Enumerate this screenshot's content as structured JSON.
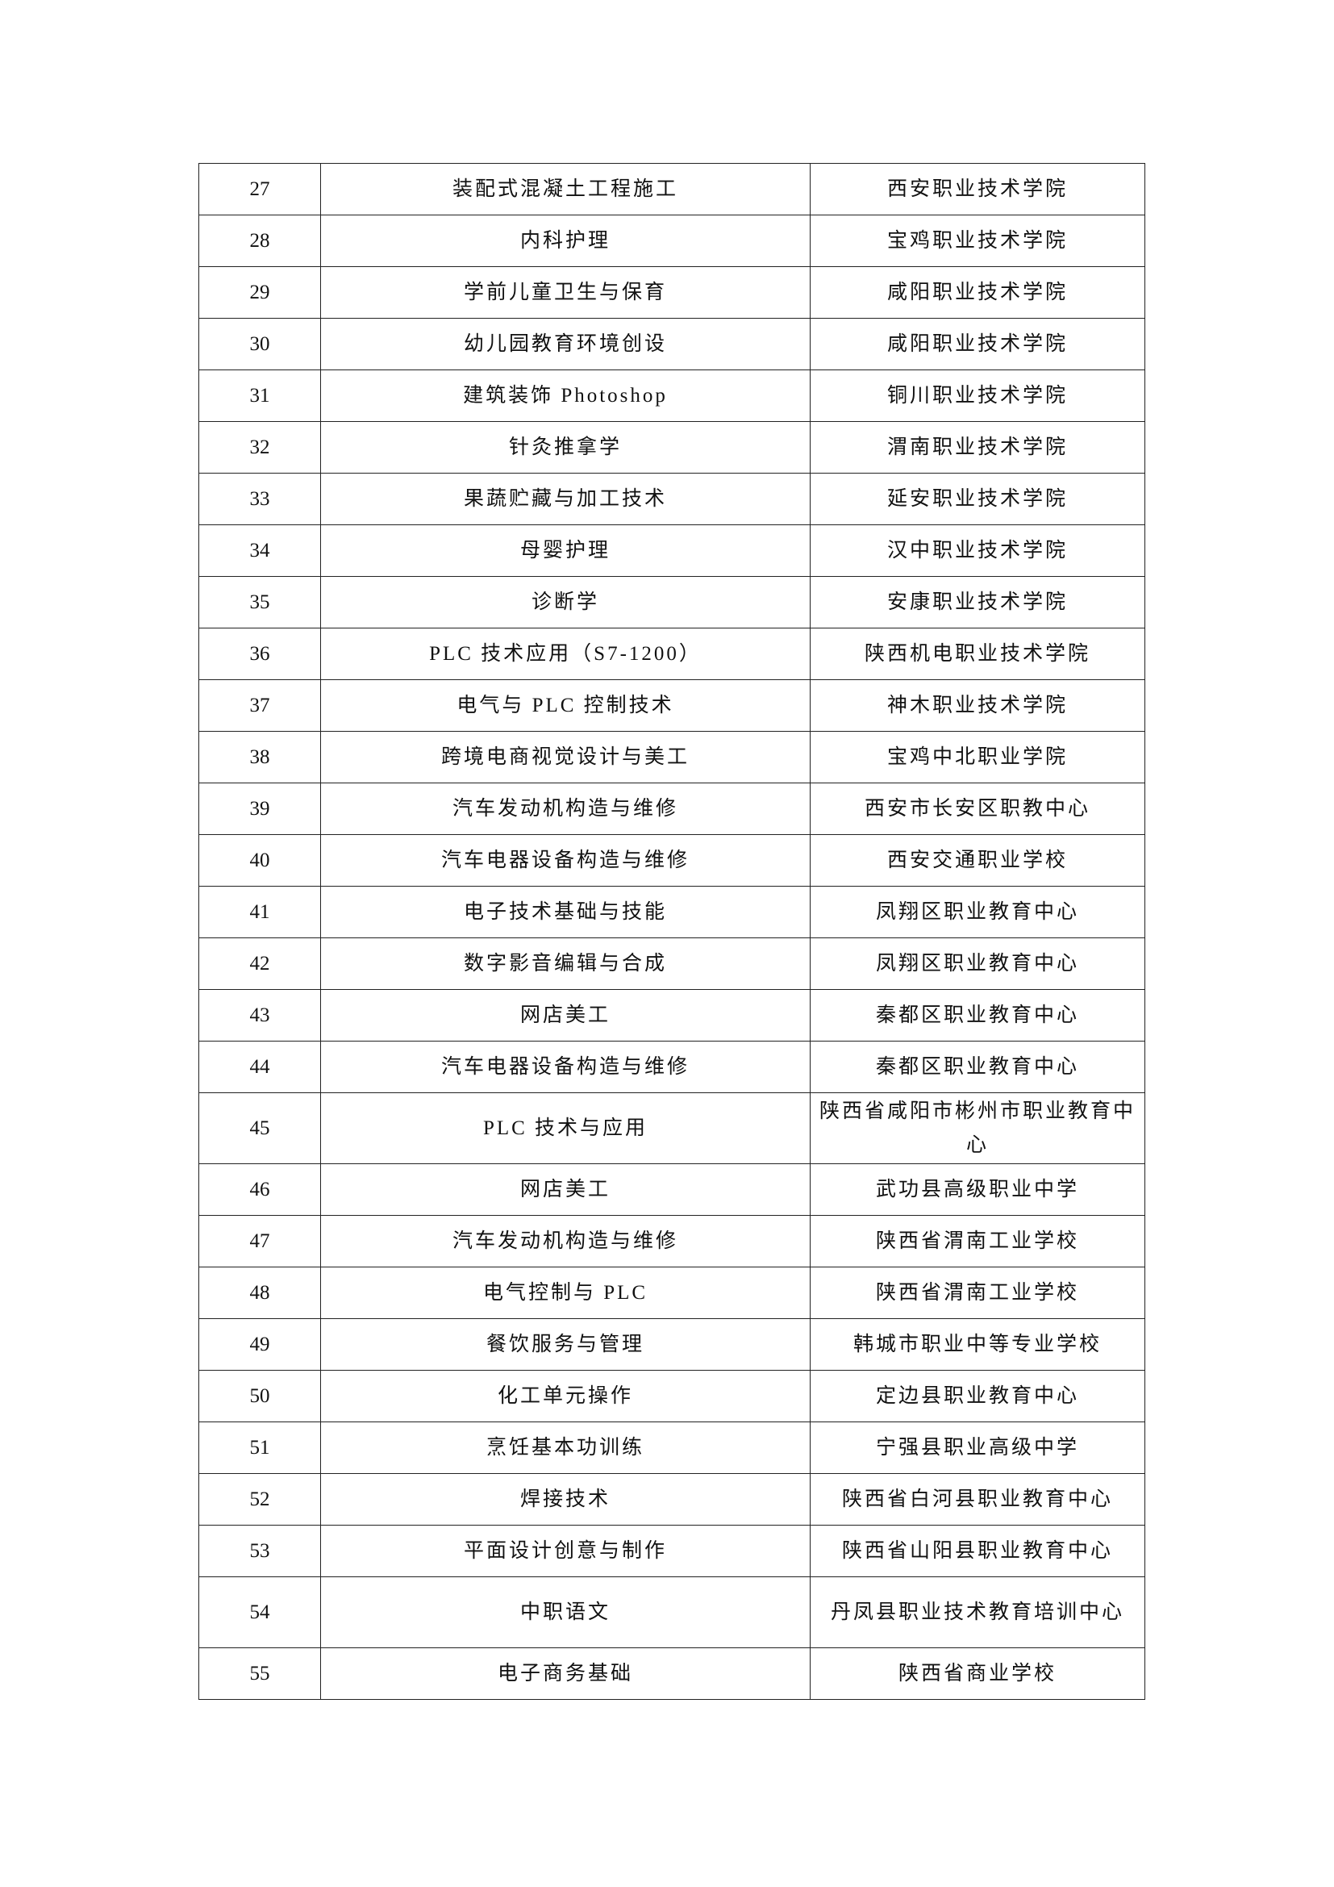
{
  "rows": [
    {
      "no": "27",
      "course": "装配式混凝土工程施工",
      "school": "西安职业技术学院"
    },
    {
      "no": "28",
      "course": "内科护理",
      "school": "宝鸡职业技术学院"
    },
    {
      "no": "29",
      "course": "学前儿童卫生与保育",
      "school": "咸阳职业技术学院"
    },
    {
      "no": "30",
      "course": "幼儿园教育环境创设",
      "school": "咸阳职业技术学院"
    },
    {
      "no": "31",
      "course": "建筑装饰 Photoshop",
      "school": "铜川职业技术学院"
    },
    {
      "no": "32",
      "course": "针灸推拿学",
      "school": "渭南职业技术学院"
    },
    {
      "no": "33",
      "course": "果蔬贮藏与加工技术",
      "school": "延安职业技术学院"
    },
    {
      "no": "34",
      "course": "母婴护理",
      "school": "汉中职业技术学院"
    },
    {
      "no": "35",
      "course": "诊断学",
      "school": "安康职业技术学院"
    },
    {
      "no": "36",
      "course": "PLC 技术应用（S7-1200）",
      "school": "陕西机电职业技术学院"
    },
    {
      "no": "37",
      "course": "电气与 PLC 控制技术",
      "school": "神木职业技术学院"
    },
    {
      "no": "38",
      "course": "跨境电商视觉设计与美工",
      "school": "宝鸡中北职业学院"
    },
    {
      "no": "39",
      "course": "汽车发动机构造与维修",
      "school": "西安市长安区职教中心"
    },
    {
      "no": "40",
      "course": "汽车电器设备构造与维修",
      "school": "西安交通职业学校"
    },
    {
      "no": "41",
      "course": "电子技术基础与技能",
      "school": "凤翔区职业教育中心"
    },
    {
      "no": "42",
      "course": "数字影音编辑与合成",
      "school": "凤翔区职业教育中心"
    },
    {
      "no": "43",
      "course": "网店美工",
      "school": "秦都区职业教育中心"
    },
    {
      "no": "44",
      "course": "汽车电器设备构造与维修",
      "school": "秦都区职业教育中心"
    },
    {
      "no": "45",
      "course": "PLC 技术与应用",
      "school": "陕西省咸阳市彬州市职业教育中心"
    },
    {
      "no": "46",
      "course": "网店美工",
      "school": "武功县高级职业中学"
    },
    {
      "no": "47",
      "course": "汽车发动机构造与维修",
      "school": "陕西省渭南工业学校"
    },
    {
      "no": "48",
      "course": "电气控制与 PLC",
      "school": "陕西省渭南工业学校"
    },
    {
      "no": "49",
      "course": "餐饮服务与管理",
      "school": "韩城市职业中等专业学校"
    },
    {
      "no": "50",
      "course": "化工单元操作",
      "school": "定边县职业教育中心"
    },
    {
      "no": "51",
      "course": "烹饪基本功训练",
      "school": "宁强县职业高级中学"
    },
    {
      "no": "52",
      "course": "焊接技术",
      "school": "陕西省白河县职业教育中心"
    },
    {
      "no": "53",
      "course": "平面设计创意与制作",
      "school": "陕西省山阳县职业教育中心"
    },
    {
      "no": "54",
      "course": "中职语文",
      "school": "丹凤县职业技术教育培训中心"
    },
    {
      "no": "55",
      "course": "电子商务基础",
      "school": "陕西省商业学校"
    }
  ]
}
